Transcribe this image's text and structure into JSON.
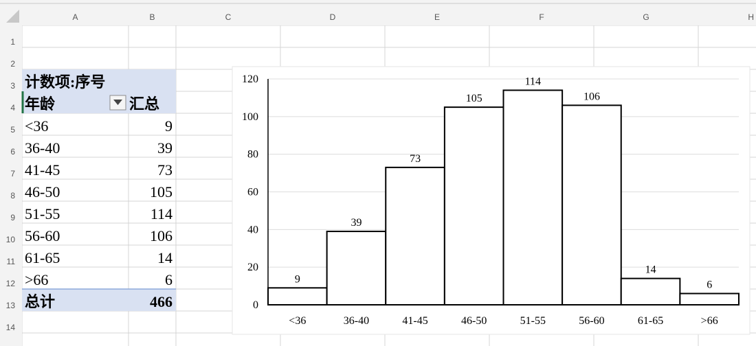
{
  "sheet": {
    "columns": [
      "A",
      "B",
      "C",
      "D",
      "E",
      "F",
      "G",
      "H"
    ],
    "rows": [
      "1",
      "2",
      "3",
      "4",
      "5",
      "6",
      "7",
      "8",
      "9",
      "10",
      "11",
      "12",
      "13",
      "14"
    ]
  },
  "pivot": {
    "title": "计数项:序号",
    "row_header": "年龄",
    "value_header": "汇总",
    "filter_icon": "dropdown-arrow-icon",
    "rows": [
      {
        "label": "<36",
        "value": "9"
      },
      {
        "label": "36-40",
        "value": "39"
      },
      {
        "label": "41-45",
        "value": "73"
      },
      {
        "label": "46-50",
        "value": "105"
      },
      {
        "label": "51-55",
        "value": "114"
      },
      {
        "label": "56-60",
        "value": "106"
      },
      {
        "label": "61-65",
        "value": "14"
      },
      {
        "label": ">66",
        "value": "6"
      }
    ],
    "total_label": "总计",
    "total_value": "466",
    "highlight_color": "#d9e1f2"
  },
  "chart_data": {
    "type": "bar",
    "categories": [
      "<36",
      "36-40",
      "41-45",
      "46-50",
      "51-55",
      "56-60",
      "61-65",
      ">66"
    ],
    "values": [
      9,
      39,
      73,
      105,
      114,
      106,
      14,
      6
    ],
    "title": "",
    "xlabel": "",
    "ylabel": "",
    "ylim": [
      0,
      120
    ],
    "yticks": [
      0,
      20,
      40,
      60,
      80,
      100,
      120
    ],
    "grid": true,
    "legend": "none",
    "data_labels": true,
    "bar_fill": "#ffffff",
    "bar_edge": "#000000"
  }
}
